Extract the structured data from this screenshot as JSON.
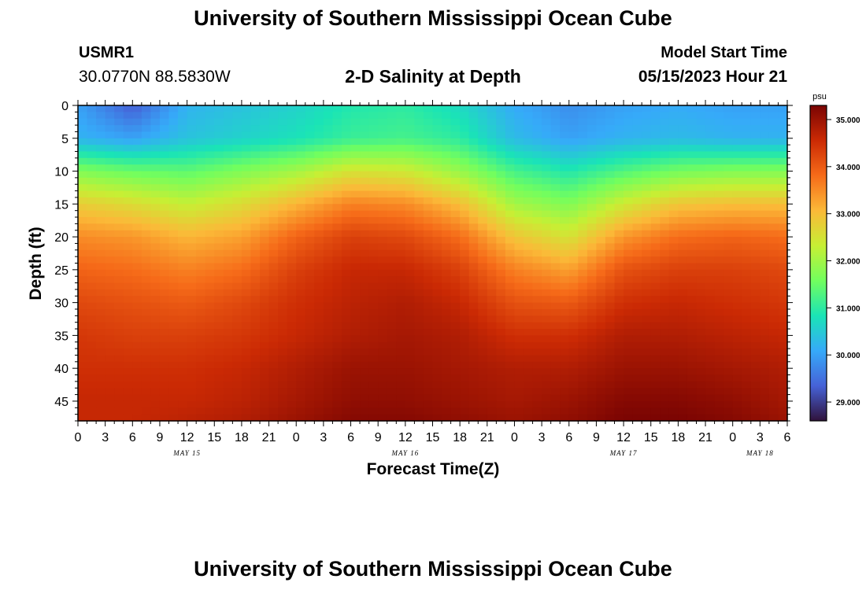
{
  "header": {
    "title": "University of Southern Mississippi Ocean Cube",
    "station_id": "USMR1",
    "coordinates": "30.0770N  88.5830W",
    "subtitle": "2-D Salinity at Depth",
    "model_start_label": "Model Start Time",
    "model_start_value": "05/15/2023 Hour 21"
  },
  "footer": {
    "title": "University of Southern Mississippi Ocean Cube"
  },
  "chart_data": {
    "type": "heatmap",
    "title": "2-D Salinity at Depth",
    "xlabel": "Forecast Time(Z)",
    "ylabel": "Depth (ft)",
    "x_tick_labels": [
      "0",
      "3",
      "6",
      "9",
      "12",
      "15",
      "18",
      "21",
      "0",
      "3",
      "6",
      "9",
      "12",
      "15",
      "18",
      "21",
      "0",
      "3",
      "6",
      "9",
      "12",
      "15",
      "18",
      "21",
      "0",
      "3",
      "6"
    ],
    "x_date_labels": [
      {
        "label": "MAY 15",
        "at_tick": 4
      },
      {
        "label": "MAY 16",
        "at_tick": 12
      },
      {
        "label": "MAY 17",
        "at_tick": 20
      },
      {
        "label": "MAY 18",
        "at_tick": 25
      }
    ],
    "xlim_hours": [
      0,
      78
    ],
    "ylim": [
      0,
      48
    ],
    "y_ticks": [
      0,
      5,
      10,
      15,
      20,
      25,
      30,
      35,
      40,
      45
    ],
    "y_inverted": true,
    "colorbar": {
      "unit": "psu",
      "range": [
        28.6,
        35.3
      ],
      "ticks": [
        "35.000",
        "34.000",
        "33.000",
        "32.000",
        "31.000",
        "30.000",
        "29.000"
      ],
      "colors": [
        "#30123b",
        "#4662d7",
        "#36aaf9",
        "#1ae4b6",
        "#72fe5e",
        "#c7ef34",
        "#fbb938",
        "#f66b19",
        "#cb2a04",
        "#7a0403"
      ]
    },
    "depths_ft": [
      0,
      5,
      10,
      15,
      20,
      25,
      30,
      35,
      40,
      45,
      48
    ],
    "time_hours": [
      0,
      6,
      12,
      18,
      24,
      30,
      36,
      42,
      48,
      54,
      60,
      66,
      72,
      78
    ],
    "salinity_psu": [
      [
        30.0,
        29.3,
        30.2,
        30.4,
        30.6,
        30.9,
        31.0,
        30.7,
        30.1,
        29.8,
        30.0,
        30.1,
        30.0,
        30.0
      ],
      [
        30.2,
        30.0,
        30.4,
        30.6,
        30.8,
        31.1,
        31.2,
        31.0,
        30.3,
        30.0,
        30.2,
        30.3,
        30.2,
        30.2
      ],
      [
        31.7,
        31.5,
        31.4,
        31.7,
        32.0,
        32.5,
        32.4,
        31.9,
        31.2,
        30.9,
        31.3,
        31.6,
        31.7,
        31.7
      ],
      [
        32.8,
        32.6,
        32.3,
        32.6,
        33.1,
        33.6,
        33.5,
        33.0,
        32.0,
        31.7,
        32.4,
        32.9,
        33.0,
        33.0
      ],
      [
        33.5,
        33.4,
        33.1,
        33.3,
        33.9,
        34.3,
        34.2,
        33.8,
        32.9,
        32.5,
        33.4,
        33.8,
        33.9,
        33.8
      ],
      [
        33.9,
        33.8,
        33.6,
        33.8,
        34.3,
        34.6,
        34.6,
        34.3,
        33.6,
        33.3,
        34.1,
        34.3,
        34.3,
        34.2
      ],
      [
        34.2,
        34.1,
        34.0,
        34.2,
        34.5,
        34.7,
        34.8,
        34.6,
        34.1,
        34.0,
        34.5,
        34.6,
        34.5,
        34.4
      ],
      [
        34.4,
        34.3,
        34.3,
        34.4,
        34.6,
        34.8,
        34.9,
        34.8,
        34.5,
        34.5,
        34.8,
        34.8,
        34.7,
        34.6
      ],
      [
        34.5,
        34.5,
        34.5,
        34.6,
        34.8,
        35.0,
        35.0,
        34.9,
        34.8,
        34.8,
        35.0,
        35.0,
        34.9,
        34.8
      ],
      [
        34.6,
        34.6,
        34.6,
        34.7,
        34.9,
        35.1,
        35.1,
        35.0,
        34.9,
        35.0,
        35.2,
        35.2,
        35.1,
        34.9
      ],
      [
        34.6,
        34.6,
        34.7,
        34.8,
        35.0,
        35.2,
        35.2,
        35.1,
        35.0,
        35.1,
        35.3,
        35.3,
        35.2,
        35.0
      ]
    ]
  }
}
